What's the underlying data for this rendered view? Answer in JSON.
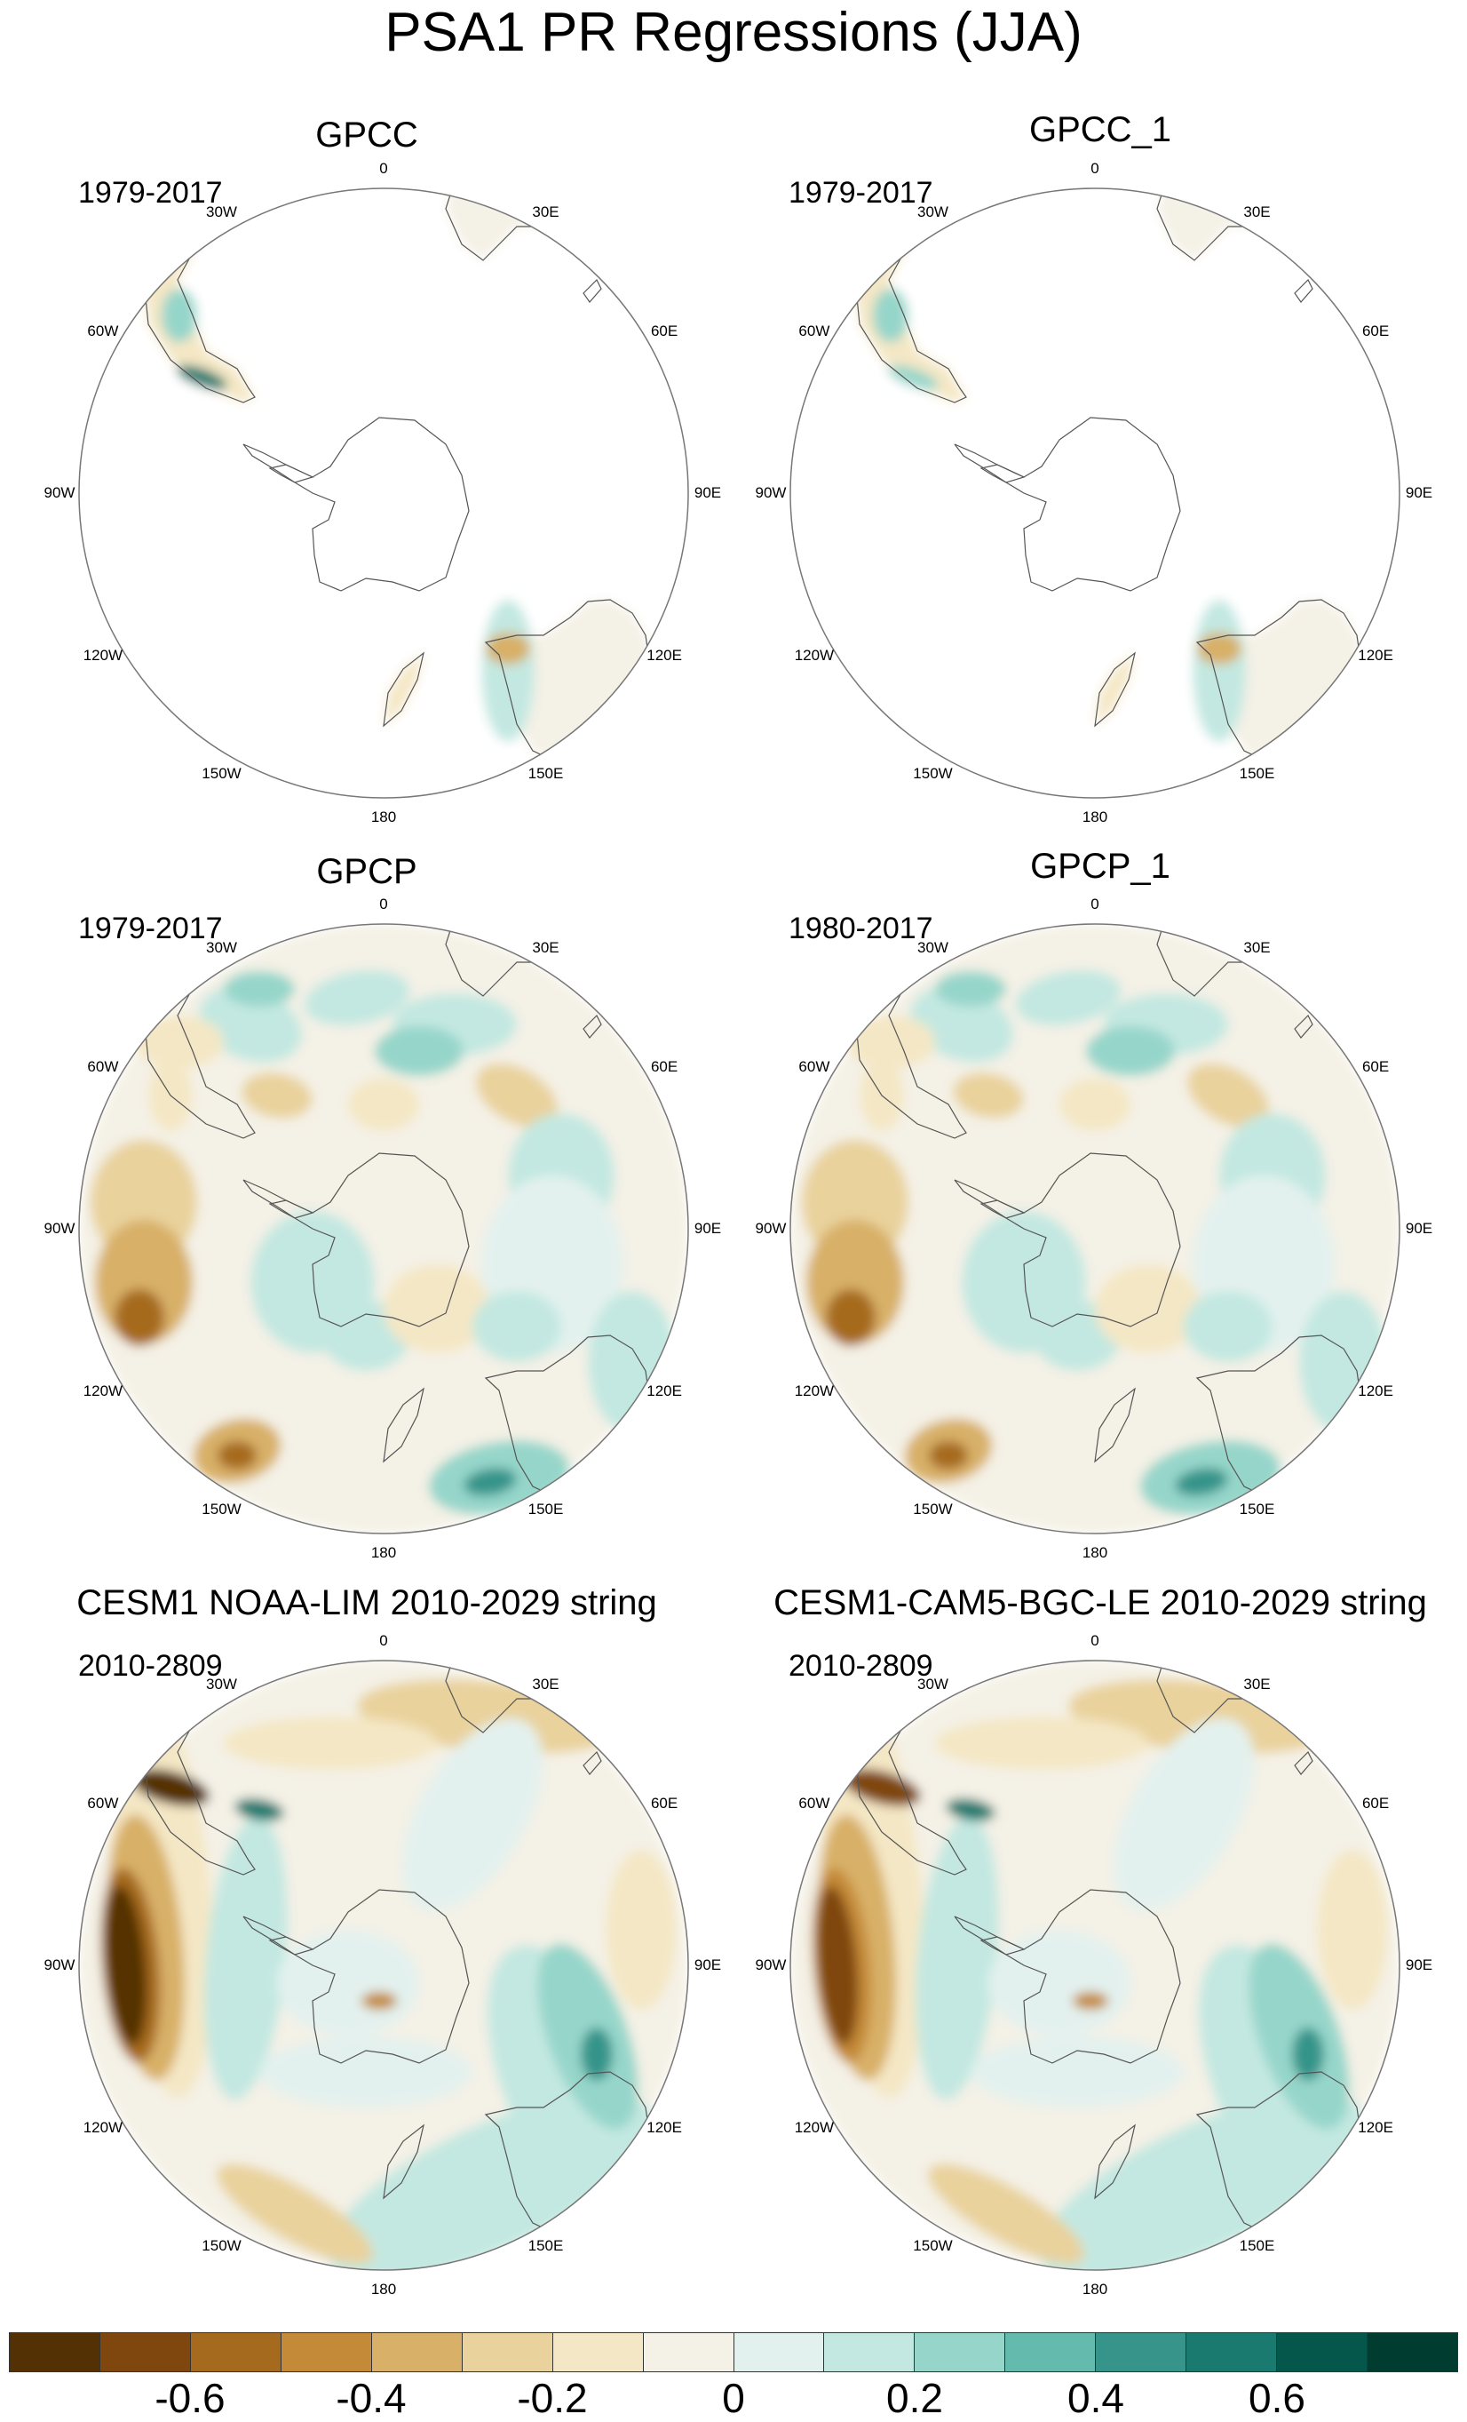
{
  "title": "PSA1 PR Regressions (JJA)",
  "colorbar": {
    "colors": [
      "#543005",
      "#7f470e",
      "#a66a1f",
      "#c48a37",
      "#d8b068",
      "#e9d29c",
      "#f4e7c5",
      "#f4f1e6",
      "#e3f1ee",
      "#c3e8e1",
      "#96d6ca",
      "#64bbad",
      "#36948a",
      "#1b7a6f",
      "#05574b",
      "#003c30"
    ],
    "tick_labels": [
      "-0.6",
      "-0.4",
      "-0.2",
      "0",
      "0.2",
      "0.4",
      "0.6"
    ],
    "tick_values": [
      -0.6,
      -0.4,
      -0.2,
      0,
      0.2,
      0.4,
      0.6
    ],
    "range": [
      -0.8,
      0.8
    ]
  },
  "longitude_labels": {
    "top": "0",
    "ne1": "30E",
    "ne2": "60E",
    "east": "90E",
    "se1": "120E",
    "se2": "150E",
    "bottom": "180",
    "sw1": "150W",
    "sw2": "120W",
    "west": "90W",
    "nw2": "60W",
    "nw1": "30W"
  },
  "panels": [
    {
      "title": "GPCC",
      "period": "1979-2017",
      "coverage": "land"
    },
    {
      "title": "GPCC_1",
      "period": "1979-2017",
      "coverage": "land"
    },
    {
      "title": "GPCP",
      "period": "1979-2017",
      "coverage": "global"
    },
    {
      "title": "GPCP_1",
      "period": "1980-2017",
      "coverage": "global"
    },
    {
      "title": "CESM1 NOAA-LIM 2010-2029 string",
      "period": "2010-2809",
      "coverage": "global"
    },
    {
      "title": "CESM1-CAM5-BGC-LE 2010-2029 string",
      "period": "2010-2809",
      "coverage": "global"
    }
  ],
  "chart_data": {
    "type": "heatmap",
    "projection": "south polar stereographic",
    "variable": "PR regression onto PSA1",
    "season": "JJA",
    "colorbar_range": [
      -0.8,
      0.8
    ],
    "colorbar_interval": 0.1,
    "panels": [
      "GPCC",
      "GPCC_1",
      "GPCP",
      "GPCP_1",
      "CESM1 NOAA-LIM 2010-2029 string",
      "CESM1-CAM5-BGC-LE 2010-2029 string"
    ]
  }
}
